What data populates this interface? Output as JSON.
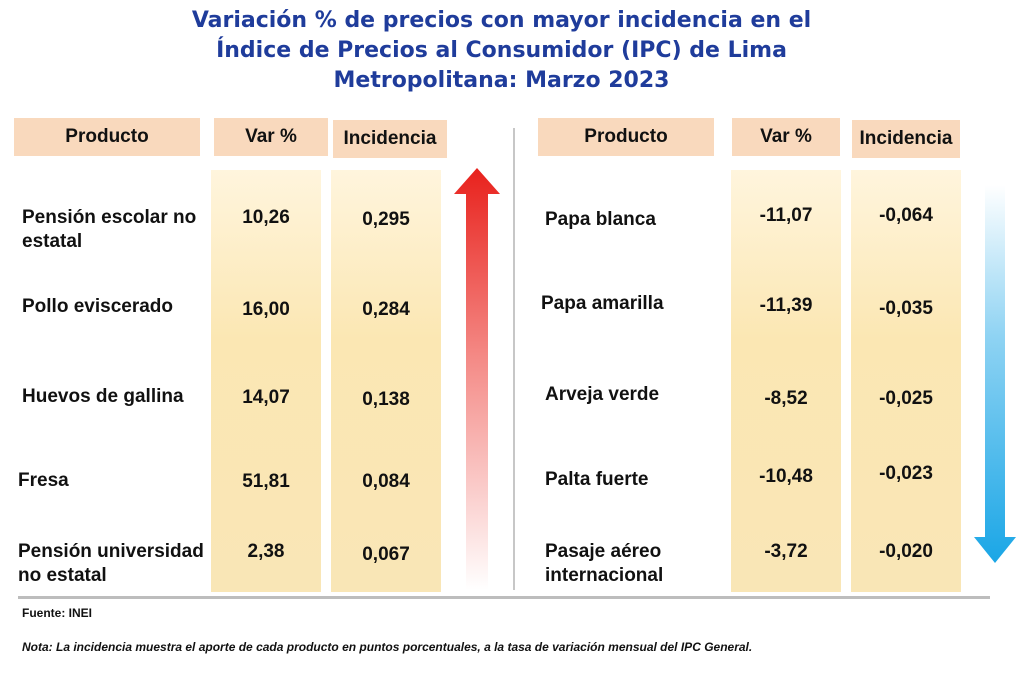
{
  "title_lines": [
    "Variación % de precios con mayor incidencia en el",
    "Índice de Precios al Consumidor (IPC) de Lima",
    "Metropolitana: Marzo 2023"
  ],
  "headers": {
    "product": "Producto",
    "var": "Var %",
    "incidence": "Incidencia"
  },
  "chart_data": {
    "type": "table",
    "columns": [
      "Producto",
      "Var %",
      "Incidencia"
    ],
    "tables": [
      {
        "rows": [
          [
            "Pensión escolar no estatal",
            "10,26",
            "0,295"
          ],
          [
            "Pollo eviscerado",
            "16,00",
            "0,284"
          ],
          [
            "Huevos de gallina",
            "14,07",
            "0,138"
          ],
          [
            "Fresa",
            "51,81",
            "0,084"
          ],
          [
            "Pensión universidad no estatal",
            "2,38",
            "0,067"
          ]
        ]
      },
      {
        "rows": [
          [
            "Papa blanca",
            "-11,07",
            "-0,064"
          ],
          [
            "Papa amarilla",
            "-11,39",
            "-0,035"
          ],
          [
            "Arveja verde",
            "-8,52",
            "-0,025"
          ],
          [
            "Palta fuerte",
            "-10,48",
            "-0,023"
          ],
          [
            "Pasaje aéreo internacional",
            "-3,72",
            "-0,020"
          ]
        ]
      }
    ]
  },
  "colors": {
    "title": "#1f3c9b",
    "header_bg": "#f9d9bd",
    "column_bg": "#fbe7b3",
    "arrow_up": "#e8211c",
    "arrow_down": "#1aa6e6"
  },
  "source": "Fuente: INEI",
  "note": "Nota: La incidencia muestra el aporte de cada producto en puntos porcentuales, a la tasa de variación mensual del IPC General."
}
